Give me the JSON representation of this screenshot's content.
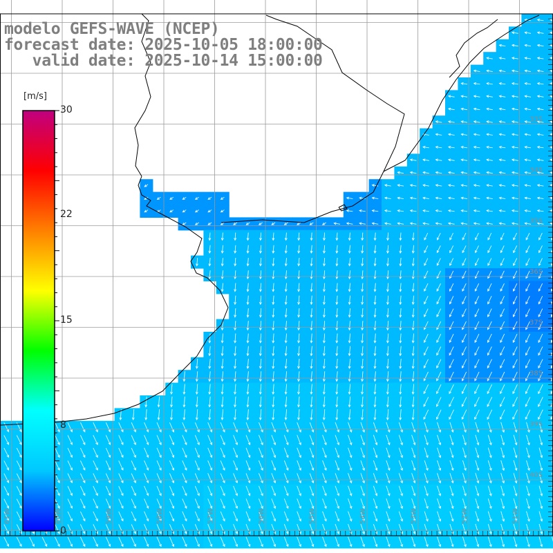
{
  "title": {
    "line1": "modelo GEFS-WAVE (NCEP)",
    "line2": "forecast date: 2025-10-05 18:00:00",
    "line3": "   valid date: 2025-10-14 15:00:00"
  },
  "colorbar": {
    "unit": "[m/s]",
    "ticks": [
      "30",
      "22",
      "15",
      "8",
      "0"
    ],
    "tick_values": [
      30,
      22,
      15,
      8,
      0
    ],
    "min": 0,
    "max": 30,
    "colors": [
      "#0000ff",
      "#00c8ff",
      "#00ffff",
      "#00ff00",
      "#ffff00",
      "#ff8000",
      "#ff0000",
      "#c00080"
    ]
  },
  "map": {
    "lat_labels": [
      "33S",
      "34S",
      "35S",
      "36S",
      "37S",
      "38S",
      "39S",
      "40S"
    ],
    "lon_labels": [
      "61W",
      "60W",
      "59W",
      "58W",
      "57W",
      "56W",
      "55W",
      "54W",
      "53W",
      "52W",
      "51W"
    ],
    "lon_range": [
      -61.1,
      -50.3
    ],
    "lat_range": [
      -41.0,
      -31.5
    ],
    "land_color": "#ffffff",
    "coast_color": "#000000",
    "grid_color": "#9a9a9a"
  }
}
